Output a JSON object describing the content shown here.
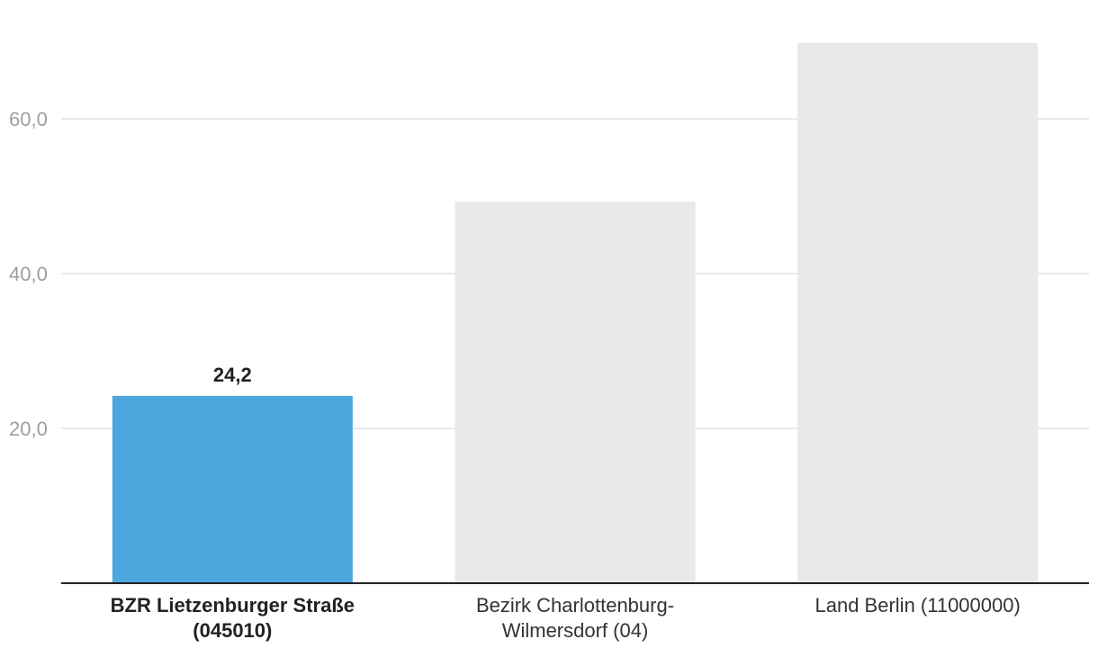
{
  "chart_data": {
    "type": "bar",
    "categories": [
      [
        "BZR Lietzenburger Straße",
        "(045010)"
      ],
      [
        "Bezirk Charlottenburg-",
        "Wilmersdorf (04)"
      ],
      [
        "Land Berlin (11000000)"
      ]
    ],
    "values": [
      24.2,
      49.3,
      69.8
    ],
    "highlighted_index": 0,
    "data_labels": [
      "24,2",
      "",
      ""
    ],
    "yticks": [
      20,
      40,
      60
    ],
    "ytick_labels": [
      "20,0",
      "40,0",
      "60,0"
    ],
    "ylim": [
      0,
      70
    ],
    "grid": true,
    "colors": {
      "highlight": "#4ea6df",
      "bar": "#e9e9e9",
      "grid": "#e0e0e0",
      "axis": "#222222",
      "tick_text": "#9e9e9e"
    }
  }
}
